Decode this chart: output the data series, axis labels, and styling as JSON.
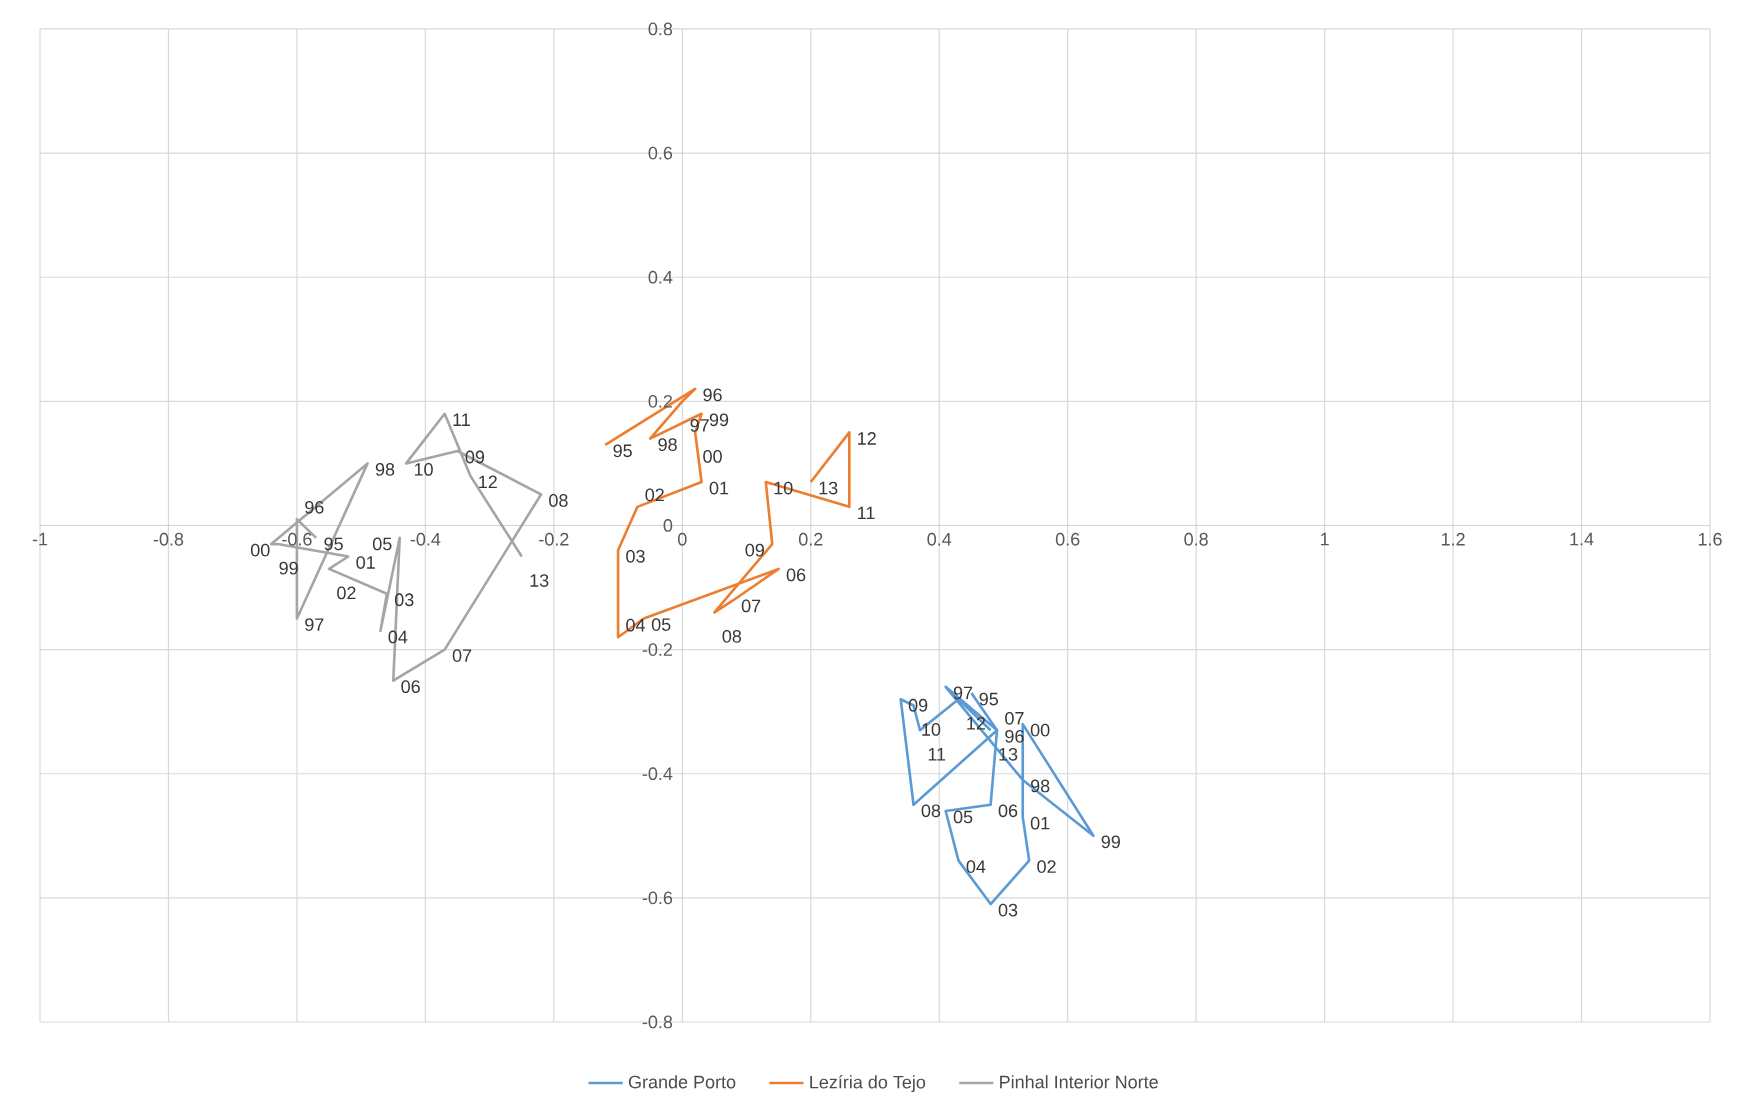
{
  "chart_data": {
    "type": "line",
    "xlim": [
      -1,
      1.6
    ],
    "ylim": [
      -0.8,
      0.8
    ],
    "xticks": [
      -1,
      -0.8,
      -0.6,
      -0.4,
      -0.2,
      0,
      0.2,
      0.4,
      0.6,
      0.8,
      1,
      1.2,
      1.4,
      1.6
    ],
    "yticks": [
      -0.8,
      -0.6,
      -0.4,
      -0.2,
      0,
      0.2,
      0.4,
      0.6,
      0.8
    ],
    "grid": true,
    "legend": "bottom",
    "series": [
      {
        "name": "Grande Porto",
        "color": "#5b9bd5",
        "x": [
          0.45,
          0.49,
          0.41,
          0.53,
          0.64,
          0.53,
          0.53,
          0.54,
          0.48,
          0.43,
          0.41,
          0.48,
          0.49,
          0.36,
          0.34,
          0.36,
          0.37,
          0.43,
          0.48
        ],
        "values": [
          -0.27,
          -0.33,
          -0.26,
          -0.41,
          -0.5,
          -0.32,
          -0.47,
          -0.54,
          -0.61,
          -0.54,
          -0.46,
          -0.45,
          -0.33,
          -0.45,
          -0.28,
          -0.29,
          -0.33,
          -0.28,
          -0.33
        ]
      },
      {
        "name": "Lezíria do Tejo",
        "color": "#ed7d31",
        "x": [
          -0.12,
          0.02,
          0.0,
          -0.05,
          0.03,
          0.02,
          0.03,
          -0.07,
          -0.1,
          -0.1,
          -0.06,
          0.15,
          0.08,
          0.05,
          0.14,
          0.13,
          0.26,
          0.26,
          0.2
        ],
        "values": [
          0.13,
          0.22,
          0.2,
          0.14,
          0.18,
          0.15,
          0.07,
          0.03,
          -0.04,
          -0.18,
          -0.15,
          -0.07,
          -0.12,
          -0.14,
          -0.03,
          0.07,
          0.03,
          0.15,
          0.07
        ]
      },
      {
        "name": "Pinhal Interior Norte",
        "color": "#a5a5a5",
        "x": [
          -0.57,
          -0.6,
          -0.6,
          -0.49,
          -0.64,
          -0.63,
          -0.52,
          -0.55,
          -0.46,
          -0.47,
          -0.44,
          -0.45,
          -0.37,
          -0.22,
          -0.35,
          -0.43,
          -0.37,
          -0.33,
          -0.25
        ],
        "values": [
          -0.02,
          0.01,
          -0.15,
          0.1,
          -0.03,
          -0.03,
          -0.05,
          -0.07,
          -0.11,
          -0.17,
          -0.02,
          -0.25,
          -0.2,
          0.05,
          0.12,
          0.1,
          0.18,
          0.08,
          -0.05
        ]
      }
    ],
    "annotations": [
      {
        "text": "95",
        "x": 0.45,
        "y": -0.27
      },
      {
        "text": "96",
        "x": 0.49,
        "y": -0.33
      },
      {
        "text": "97",
        "x": 0.41,
        "y": -0.26
      },
      {
        "text": "98",
        "x": 0.53,
        "y": -0.41
      },
      {
        "text": "99",
        "x": 0.64,
        "y": -0.5
      },
      {
        "text": "00",
        "x": 0.53,
        "y": -0.32
      },
      {
        "text": "01",
        "x": 0.53,
        "y": -0.47
      },
      {
        "text": "02",
        "x": 0.54,
        "y": -0.54
      },
      {
        "text": "03",
        "x": 0.48,
        "y": -0.61
      },
      {
        "text": "04",
        "x": 0.43,
        "y": -0.54
      },
      {
        "text": "05",
        "x": 0.41,
        "y": -0.46
      },
      {
        "text": "06",
        "x": 0.48,
        "y": -0.45
      },
      {
        "text": "07",
        "x": 0.49,
        "y": -0.33
      },
      {
        "text": "08",
        "x": 0.36,
        "y": -0.45
      },
      {
        "text": "09",
        "x": 0.34,
        "y": -0.28
      },
      {
        "text": "10",
        "x": 0.36,
        "y": -0.29
      },
      {
        "text": "11",
        "x": 0.37,
        "y": -0.33
      },
      {
        "text": "12",
        "x": 0.43,
        "y": -0.28
      },
      {
        "text": "13",
        "x": 0.48,
        "y": -0.33
      },
      {
        "text": "95",
        "x": -0.12,
        "y": 0.13
      },
      {
        "text": "96",
        "x": 0.02,
        "y": 0.22
      },
      {
        "text": "97",
        "x": 0.0,
        "y": 0.2
      },
      {
        "text": "98",
        "x": -0.05,
        "y": 0.14
      },
      {
        "text": "99",
        "x": 0.03,
        "y": 0.18
      },
      {
        "text": "00",
        "x": 0.02,
        "y": 0.15
      },
      {
        "text": "01",
        "x": 0.03,
        "y": 0.07
      },
      {
        "text": "02",
        "x": -0.07,
        "y": 0.03
      },
      {
        "text": "03",
        "x": -0.1,
        "y": -0.04
      },
      {
        "text": "04",
        "x": -0.1,
        "y": -0.18
      },
      {
        "text": "05",
        "x": -0.06,
        "y": -0.15
      },
      {
        "text": "06",
        "x": 0.15,
        "y": -0.07
      },
      {
        "text": "07",
        "x": 0.08,
        "y": -0.12
      },
      {
        "text": "08",
        "x": 0.05,
        "y": -0.14
      },
      {
        "text": "09",
        "x": 0.14,
        "y": -0.03
      },
      {
        "text": "10",
        "x": 0.13,
        "y": 0.07
      },
      {
        "text": "11",
        "x": 0.26,
        "y": 0.03
      },
      {
        "text": "12",
        "x": 0.26,
        "y": 0.15
      },
      {
        "text": "13",
        "x": 0.2,
        "y": 0.07
      },
      {
        "text": "95",
        "x": -0.57,
        "y": -0.02
      },
      {
        "text": "96",
        "x": -0.6,
        "y": 0.01
      },
      {
        "text": "97",
        "x": -0.6,
        "y": -0.15
      },
      {
        "text": "98",
        "x": -0.49,
        "y": 0.1
      },
      {
        "text": "99",
        "x": -0.64,
        "y": -0.03
      },
      {
        "text": "00",
        "x": -0.63,
        "y": -0.03
      },
      {
        "text": "01",
        "x": -0.52,
        "y": -0.05
      },
      {
        "text": "02",
        "x": -0.55,
        "y": -0.07
      },
      {
        "text": "03",
        "x": -0.46,
        "y": -0.11
      },
      {
        "text": "04",
        "x": -0.47,
        "y": -0.17
      },
      {
        "text": "05",
        "x": -0.44,
        "y": -0.02
      },
      {
        "text": "06",
        "x": -0.45,
        "y": -0.25
      },
      {
        "text": "07",
        "x": -0.37,
        "y": -0.2
      },
      {
        "text": "08",
        "x": -0.22,
        "y": 0.05
      },
      {
        "text": "09",
        "x": -0.35,
        "y": 0.12
      },
      {
        "text": "10",
        "x": -0.43,
        "y": 0.1
      },
      {
        "text": "11",
        "x": -0.37,
        "y": 0.18
      },
      {
        "text": "12",
        "x": -0.33,
        "y": 0.08
      },
      {
        "text": "13",
        "x": -0.25,
        "y": -0.05
      }
    ]
  }
}
